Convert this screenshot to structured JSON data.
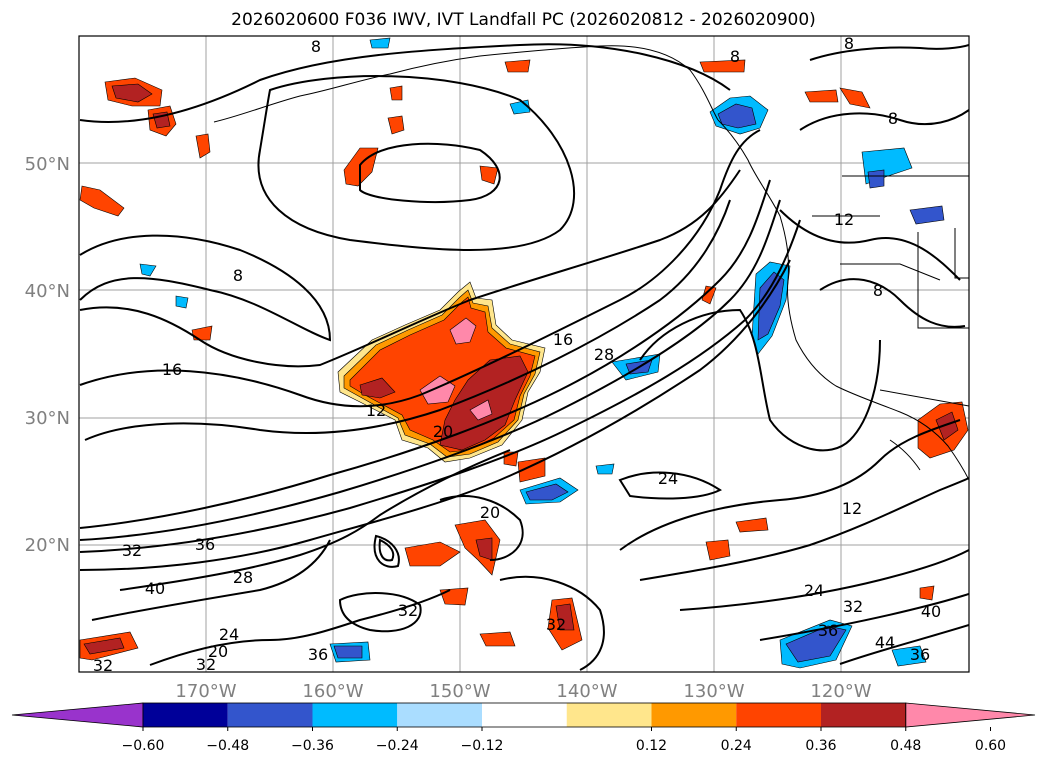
{
  "title": "2026020600 F036 IWV, IVT Landfall PC (2026020812 - 2026020900)",
  "map": {
    "lat_labels": [
      "50°N",
      "40°N",
      "30°N",
      "20°N"
    ],
    "lon_labels": [
      "170°W",
      "160°W",
      "150°W",
      "140°W",
      "130°W",
      "120°W"
    ],
    "grid": true,
    "tick_label_color": "#808080"
  },
  "contour_labels": [
    "8",
    "8",
    "8",
    "8",
    "8",
    "8",
    "12",
    "12",
    "12",
    "16",
    "16",
    "20",
    "20",
    "24",
    "24",
    "28",
    "28",
    "32",
    "32",
    "32",
    "36",
    "36",
    "36",
    "40",
    "40",
    "44",
    "36",
    "32",
    "24",
    "20",
    "32",
    "32"
  ],
  "colorbar": {
    "ticks": [
      "−0.60",
      "−0.48",
      "−0.36",
      "−0.24",
      "−0.12",
      "0.12",
      "0.24",
      "0.36",
      "0.48",
      "0.60"
    ],
    "colors": [
      "#9933cc",
      "#000099",
      "#3355cc",
      "#00bbff",
      "#aaddff",
      "#ffffff",
      "#ffe68c",
      "#ff9900",
      "#ff4400",
      "#b22222",
      "#ff88aa"
    ],
    "extend": "both"
  }
}
